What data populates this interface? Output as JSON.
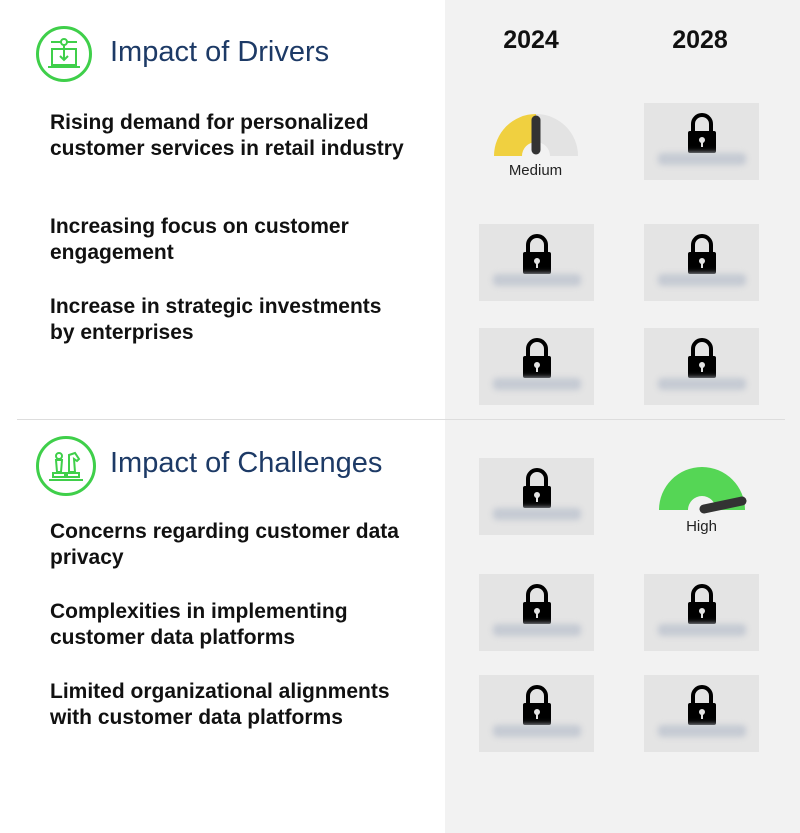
{
  "columns": {
    "year_1": "2024",
    "year_2": "2028"
  },
  "drivers": {
    "title": "Impact of Drivers",
    "icon": "laptop-circuit-icon",
    "items": [
      {
        "label": "Rising demand for personalized customer services in retail industry",
        "2024": {
          "type": "gauge",
          "level": "Medium"
        },
        "2028": {
          "type": "locked"
        }
      },
      {
        "label": "Increasing focus on customer engagement",
        "2024": {
          "type": "locked"
        },
        "2028": {
          "type": "locked"
        }
      },
      {
        "label": "Increase in strategic investments by enterprises",
        "2024": {
          "type": "locked"
        },
        "2028": {
          "type": "locked"
        }
      }
    ]
  },
  "challenges": {
    "title": "Impact of Challenges",
    "icon": "chess-pieces-icon",
    "items": [
      {
        "label": "Concerns regarding customer data privacy",
        "2024": {
          "type": "locked"
        },
        "2028": {
          "type": "gauge",
          "level": "High"
        }
      },
      {
        "label": "Complexities in implementing customer data platforms",
        "2024": {
          "type": "locked"
        },
        "2028": {
          "type": "locked"
        }
      },
      {
        "label": "Limited organizational alignments with customer data platforms",
        "2024": {
          "type": "locked"
        },
        "2028": {
          "type": "locked"
        }
      }
    ]
  },
  "colors": {
    "accent_green": "#3fcf4a",
    "title_blue": "#1d3a66",
    "medium": "#f0d040",
    "high": "#55d655",
    "panel": "#f2f2f2"
  }
}
